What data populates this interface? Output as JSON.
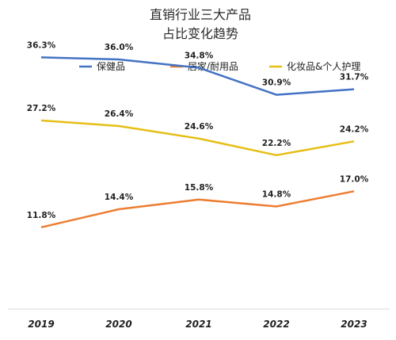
{
  "chart_data": {
    "type": "line",
    "title_lines": [
      "直销行业三大产品",
      "占比变化趋势"
    ],
    "categories": [
      "2019",
      "2020",
      "2021",
      "2022",
      "2023"
    ],
    "ylim": [
      0,
      40
    ],
    "grid": false,
    "legend_position": "top-center",
    "series": [
      {
        "name": "保健品",
        "color": "#4472c4",
        "values": [
          36.3,
          36.0,
          34.8,
          30.9,
          31.7
        ],
        "labels": [
          "36.3%",
          "36.0%",
          "34.8%",
          "30.9%",
          "31.7%"
        ]
      },
      {
        "name": "居家/耐用品",
        "color": "#ed7d31",
        "values": [
          11.8,
          14.4,
          15.8,
          14.8,
          17.0
        ],
        "labels": [
          "11.8%",
          "14.4%",
          "15.8%",
          "14.8%",
          "17.0%"
        ]
      },
      {
        "name": "化妆品&个人护理",
        "color": "#e6be14",
        "values": [
          27.2,
          26.4,
          24.6,
          22.2,
          24.2
        ],
        "labels": [
          "27.2%",
          "26.4%",
          "24.6%",
          "22.2%",
          "24.2%"
        ]
      }
    ]
  }
}
